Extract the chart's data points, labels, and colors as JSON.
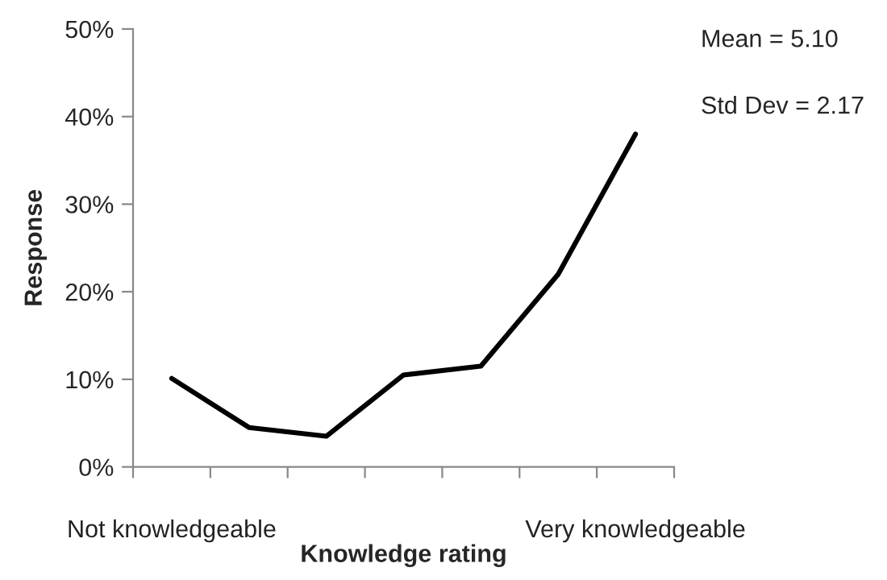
{
  "chart_data": {
    "type": "line",
    "xlabel": "Knowledge rating",
    "ylabel": "Response",
    "categories": [
      "Not knowledgeable",
      null,
      null,
      null,
      null,
      null,
      "Very knowledgeable"
    ],
    "series": [
      {
        "color": "#000000",
        "values": [
          10.1,
          4.5,
          3.5,
          10.5,
          11.5,
          22.0,
          38.0
        ]
      }
    ],
    "ylim": [
      0,
      50
    ],
    "yticks": [
      {
        "value": 0,
        "label": "0%"
      },
      {
        "value": 10,
        "label": "10%"
      },
      {
        "value": 20,
        "label": "20%"
      },
      {
        "value": 30,
        "label": "30%"
      },
      {
        "value": 40,
        "label": "40%"
      },
      {
        "value": 50,
        "label": "50%"
      }
    ],
    "annotations": [
      "Mean = 5.10",
      "Std Dev = 2.17"
    ],
    "grid": false,
    "legend": false
  }
}
